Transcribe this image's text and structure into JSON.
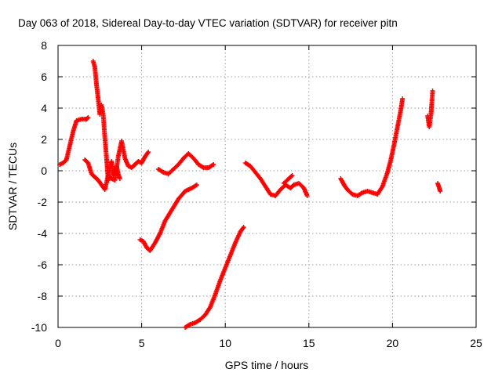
{
  "chart_data": {
    "type": "scatter",
    "title": "Day 063 of 2018, Sidereal Day-to-day VTEC variation (SDTVAR) for receiver pitn",
    "xlabel": "GPS time / hours",
    "ylabel": "SDTVAR / TECUs",
    "xlim": [
      0,
      25
    ],
    "ylim": [
      -10,
      8
    ],
    "x_ticks": [
      0,
      5,
      10,
      15,
      20,
      25
    ],
    "y_ticks": [
      -10,
      -8,
      -6,
      -4,
      -2,
      0,
      2,
      4,
      6,
      8
    ],
    "grid": true,
    "marker": "plus",
    "color": "#ff0000",
    "segments": [
      {
        "name": "seg-1",
        "points": [
          [
            0.1,
            0.4
          ],
          [
            0.3,
            0.5
          ],
          [
            0.5,
            0.7
          ],
          [
            0.7,
            1.6
          ],
          [
            0.9,
            2.5
          ],
          [
            1.1,
            3.2
          ],
          [
            1.4,
            3.3
          ],
          [
            1.7,
            3.3
          ],
          [
            1.8,
            3.4
          ]
        ]
      },
      {
        "name": "seg-2",
        "points": [
          [
            1.6,
            0.7
          ],
          [
            1.8,
            0.5
          ],
          [
            2.0,
            -0.2
          ],
          [
            2.2,
            -0.4
          ],
          [
            2.4,
            -0.6
          ],
          [
            2.6,
            -0.9
          ],
          [
            2.8,
            -1.2
          ],
          [
            3.0,
            -0.3
          ],
          [
            3.2,
            -0.5
          ],
          [
            3.4,
            -0.6
          ],
          [
            3.6,
            0.9
          ],
          [
            3.8,
            1.9
          ],
          [
            4.0,
            0.8
          ],
          [
            4.2,
            0.3
          ],
          [
            4.4,
            0.2
          ],
          [
            4.6,
            0.4
          ],
          [
            4.8,
            0.6
          ],
          [
            5.0,
            0.5
          ],
          [
            5.2,
            0.9
          ],
          [
            5.4,
            1.2
          ]
        ]
      },
      {
        "name": "seg-3",
        "points": [
          [
            2.1,
            7.0
          ],
          [
            2.2,
            6.6
          ],
          [
            2.3,
            5.5
          ],
          [
            2.4,
            4.6
          ],
          [
            2.5,
            3.6
          ],
          [
            2.6,
            4.2
          ],
          [
            2.7,
            3.6
          ],
          [
            2.8,
            2.1
          ],
          [
            2.9,
            0.8
          ],
          [
            3.0,
            -0.6
          ],
          [
            3.1,
            0.2
          ],
          [
            3.2,
            0.6
          ],
          [
            3.3,
            -0.3
          ],
          [
            3.4,
            0.0
          ],
          [
            3.5,
            0.3
          ],
          [
            3.6,
            -0.2
          ],
          [
            3.7,
            -0.5
          ]
        ]
      },
      {
        "name": "seg-4",
        "points": [
          [
            4.9,
            -4.4
          ],
          [
            5.1,
            -4.5
          ],
          [
            5.3,
            -4.9
          ],
          [
            5.5,
            -5.1
          ],
          [
            5.8,
            -4.6
          ],
          [
            6.1,
            -4.0
          ],
          [
            6.4,
            -3.2
          ],
          [
            6.8,
            -2.5
          ],
          [
            7.2,
            -1.8
          ],
          [
            7.6,
            -1.3
          ],
          [
            8.0,
            -1.1
          ],
          [
            8.3,
            -0.9
          ]
        ]
      },
      {
        "name": "seg-5",
        "points": [
          [
            6.0,
            0.1
          ],
          [
            6.3,
            -0.1
          ],
          [
            6.6,
            -0.2
          ],
          [
            6.9,
            0.1
          ],
          [
            7.2,
            0.4
          ],
          [
            7.5,
            0.8
          ],
          [
            7.8,
            1.1
          ],
          [
            8.1,
            0.8
          ],
          [
            8.4,
            0.4
          ],
          [
            8.7,
            0.2
          ],
          [
            9.0,
            0.2
          ],
          [
            9.3,
            0.4
          ]
        ]
      },
      {
        "name": "seg-6",
        "points": [
          [
            7.6,
            -10.0
          ],
          [
            7.9,
            -9.8
          ],
          [
            8.2,
            -9.7
          ],
          [
            8.5,
            -9.5
          ],
          [
            8.8,
            -9.2
          ],
          [
            9.1,
            -8.7
          ],
          [
            9.4,
            -7.9
          ],
          [
            9.7,
            -7.0
          ],
          [
            10.0,
            -6.2
          ],
          [
            10.3,
            -5.4
          ],
          [
            10.6,
            -4.6
          ],
          [
            10.9,
            -3.9
          ],
          [
            11.1,
            -3.6
          ]
        ]
      },
      {
        "name": "seg-7",
        "points": [
          [
            11.2,
            0.5
          ],
          [
            11.5,
            0.3
          ],
          [
            11.8,
            -0.1
          ],
          [
            12.1,
            -0.5
          ],
          [
            12.4,
            -1.0
          ],
          [
            12.7,
            -1.5
          ],
          [
            13.0,
            -1.6
          ],
          [
            13.3,
            -1.2
          ],
          [
            13.6,
            -0.9
          ],
          [
            13.9,
            -1.1
          ],
          [
            14.1,
            -0.9
          ],
          [
            14.4,
            -0.8
          ],
          [
            14.7,
            -1.1
          ],
          [
            14.9,
            -1.6
          ]
        ]
      },
      {
        "name": "seg-8",
        "points": [
          [
            13.5,
            -0.8
          ],
          [
            13.8,
            -0.5
          ],
          [
            14.0,
            -0.3
          ]
        ]
      },
      {
        "name": "seg-9",
        "points": [
          [
            16.9,
            -0.5
          ],
          [
            17.1,
            -0.9
          ],
          [
            17.3,
            -1.2
          ],
          [
            17.6,
            -1.5
          ],
          [
            17.9,
            -1.6
          ],
          [
            18.2,
            -1.4
          ],
          [
            18.5,
            -1.3
          ],
          [
            18.8,
            -1.4
          ],
          [
            19.1,
            -1.5
          ],
          [
            19.4,
            -1.0
          ],
          [
            19.7,
            -0.1
          ],
          [
            19.9,
            0.7
          ],
          [
            20.1,
            1.7
          ],
          [
            20.3,
            2.8
          ],
          [
            20.5,
            3.9
          ],
          [
            20.6,
            4.6
          ]
        ]
      },
      {
        "name": "seg-10",
        "points": [
          [
            22.1,
            3.5
          ],
          [
            22.2,
            2.8
          ],
          [
            22.3,
            3.6
          ],
          [
            22.35,
            4.3
          ],
          [
            22.4,
            5.1
          ]
        ]
      },
      {
        "name": "seg-11",
        "points": [
          [
            22.7,
            -0.8
          ],
          [
            22.8,
            -1.1
          ],
          [
            22.85,
            -1.3
          ]
        ]
      }
    ]
  }
}
